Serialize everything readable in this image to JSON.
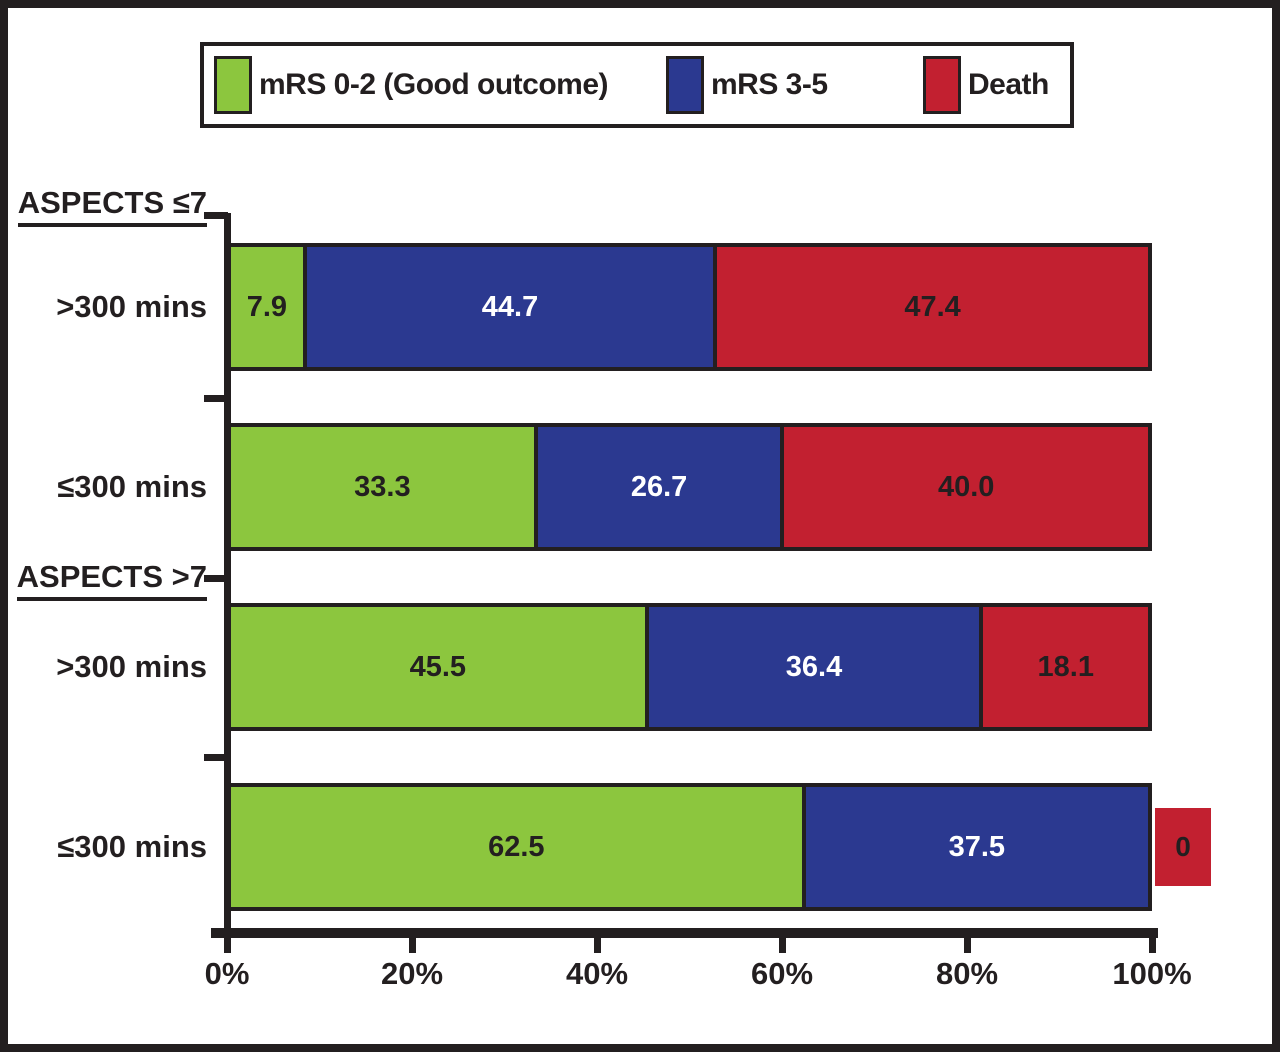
{
  "figure": {
    "background": "#FFFFFF",
    "border_color": "#231F20"
  },
  "legend": {
    "position": "top",
    "items": [
      {
        "label": "mRS 0-2 (Good outcome)",
        "color": "#8CC63E"
      },
      {
        "label": "mRS 3-5",
        "color": "#2B3990"
      },
      {
        "label": "Death",
        "color": "#C22030"
      }
    ]
  },
  "chart_data": {
    "type": "bar",
    "orientation": "horizontal",
    "stacked": true,
    "unit": "percent",
    "grid": false,
    "legend_position": "top",
    "series": [
      {
        "name": "mRS 0-2 (Good outcome)",
        "key": "mrs-0-2",
        "color": "#8CC63E",
        "label_color": "#231F20"
      },
      {
        "name": "mRS 3-5",
        "key": "mrs-3-5",
        "color": "#2B3990",
        "label_color": "#FFFFFF"
      },
      {
        "name": "Death",
        "key": "death",
        "color": "#C22030",
        "label_color": "#231F20"
      }
    ],
    "groups": [
      {
        "heading": "ASPECTS ≤7",
        "bars": [
          {
            "category": ">300 mins",
            "values": [
              7.9,
              44.7,
              47.4
            ],
            "labels": [
              "7.9",
              "44.7",
              "47.4"
            ]
          },
          {
            "category": "≤300 mins",
            "values": [
              33.3,
              26.7,
              40.0
            ],
            "labels": [
              "33.3",
              "26.7",
              "40.0"
            ]
          }
        ]
      },
      {
        "heading": "ASPECTS >7",
        "bars": [
          {
            "category": ">300 mins",
            "values": [
              45.5,
              36.4,
              18.1
            ],
            "labels": [
              "45.5",
              "36.4",
              "18.1"
            ]
          },
          {
            "category": "≤300 mins",
            "values": [
              62.5,
              37.5,
              0
            ],
            "labels": [
              "62.5",
              "37.5",
              "0"
            ]
          }
        ]
      }
    ],
    "x_axis": {
      "min": 0,
      "max": 100,
      "ticks": [
        "0%",
        "20%",
        "40%",
        "60%",
        "80%",
        "100%"
      ]
    }
  }
}
